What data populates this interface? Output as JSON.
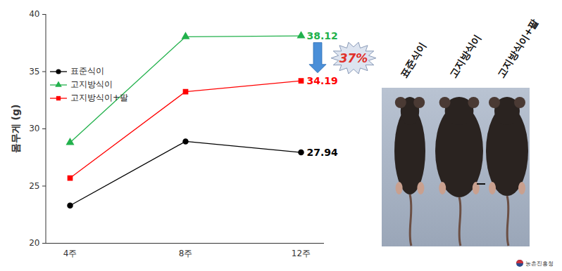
{
  "chart_data": {
    "type": "line",
    "categories": [
      "4주",
      "8주",
      "12주"
    ],
    "y_label": "몸무게 (g)",
    "ylim": [
      20,
      40
    ],
    "yticks": [
      20,
      25,
      30,
      35,
      40
    ],
    "grid": false,
    "legend": "top-left",
    "series": [
      {
        "name": "표준식이",
        "color": "#000000",
        "marker": "circle",
        "values": [
          23.3,
          28.9,
          27.94
        ],
        "value_labels": [
          null,
          null,
          "27.94"
        ]
      },
      {
        "name": "고지방식이",
        "color": "#22b14c",
        "marker": "triangle",
        "values": [
          28.8,
          38.05,
          38.12
        ],
        "value_labels": [
          null,
          null,
          "38.12"
        ]
      },
      {
        "name": "고지방식이+팔",
        "color": "#ff0000",
        "marker": "square",
        "values": [
          25.7,
          33.25,
          34.19
        ],
        "value_labels": [
          null,
          null,
          "34.19"
        ]
      }
    ],
    "annotation": "37%",
    "image_labels": [
      "표준식이",
      "고지방식이",
      "고지방식이+팔"
    ],
    "source": "농촌진흥청"
  }
}
